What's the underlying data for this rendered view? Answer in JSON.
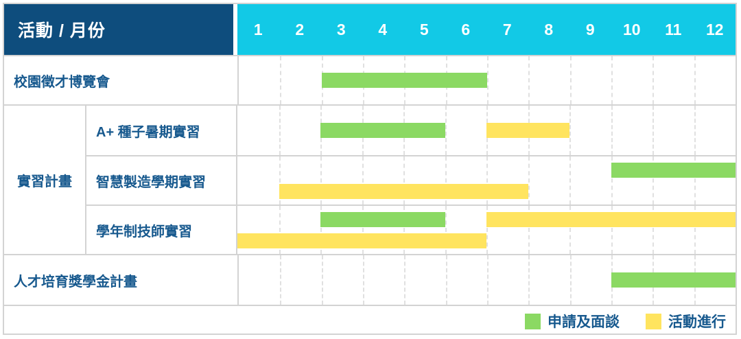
{
  "header": {
    "title": "活動 / 月份"
  },
  "colors": {
    "navy_header": "#0E4D7D",
    "cyan_header": "#12C9E6",
    "apply_green": "#8BD963",
    "active_yellow": "#FFE45F",
    "label_text": "#17598E"
  },
  "chart_data": {
    "type": "gantt",
    "title": "活動 / 月份",
    "x_ticks": [
      "1",
      "2",
      "3",
      "4",
      "5",
      "6",
      "7",
      "8",
      "9",
      "10",
      "11",
      "12"
    ],
    "x_range": [
      1,
      12
    ],
    "grid": "dashed-vertical-month-lines",
    "legend_position": "bottom-right",
    "group_label": "實習計畫",
    "legend": [
      {
        "key": "apply",
        "label": "申請及面談",
        "color": "#8BD963"
      },
      {
        "key": "active",
        "label": "活動進行",
        "color": "#FFE45F"
      }
    ],
    "rows": [
      {
        "label": "校園徵才博覽會",
        "group": "",
        "lanes": [
          [
            {
              "type": "apply",
              "start_month": 3,
              "end_month": 6
            }
          ]
        ]
      },
      {
        "label": "A+ 種子暑期實習",
        "group": "實習計畫",
        "lanes": [
          [
            {
              "type": "apply",
              "start_month": 3,
              "end_month": 5
            },
            {
              "type": "active",
              "start_month": 7,
              "end_month": 8
            }
          ]
        ]
      },
      {
        "label": "智慧製造學期實習",
        "group": "實習計畫",
        "lanes": [
          [
            {
              "type": "apply",
              "start_month": 10,
              "end_month": 12
            }
          ],
          [
            {
              "type": "active",
              "start_month": 2,
              "end_month": 7
            }
          ]
        ]
      },
      {
        "label": "學年制技師實習",
        "group": "實習計畫",
        "lanes": [
          [
            {
              "type": "apply",
              "start_month": 3,
              "end_month": 5
            },
            {
              "type": "active",
              "start_month": 7,
              "end_month": 12
            }
          ],
          [
            {
              "type": "active",
              "start_month": 1,
              "end_month": 6
            }
          ]
        ]
      },
      {
        "label": "人才培育獎學金計畫",
        "group": "",
        "lanes": [
          [
            {
              "type": "apply",
              "start_month": 10,
              "end_month": 12
            }
          ]
        ]
      }
    ]
  }
}
